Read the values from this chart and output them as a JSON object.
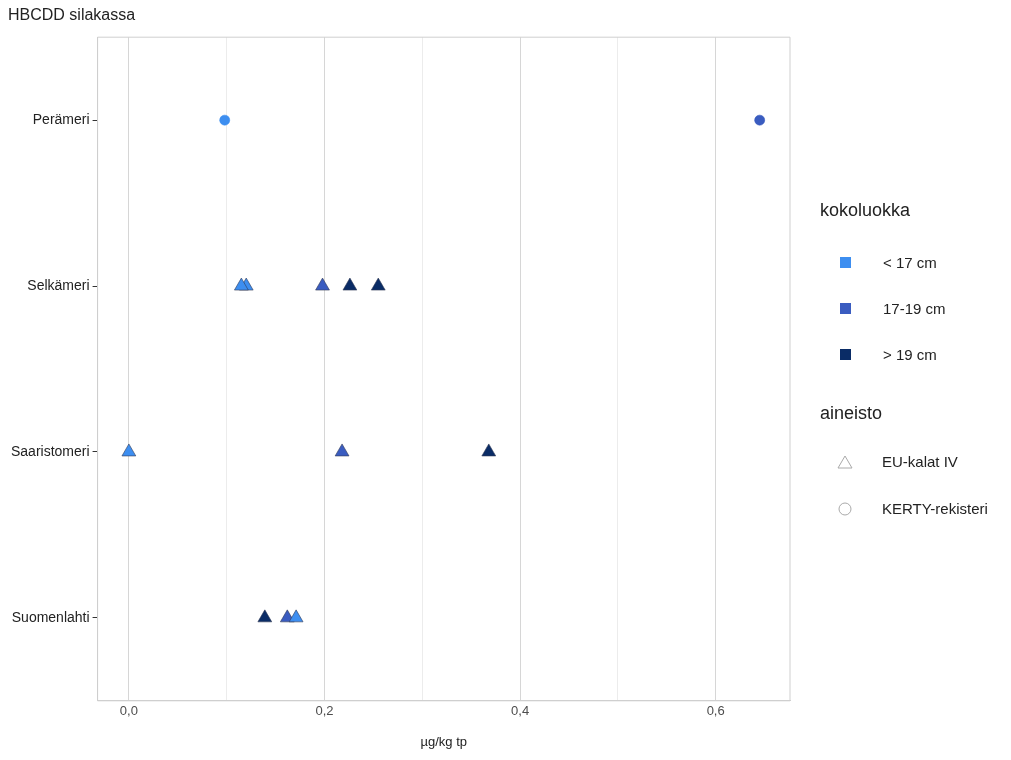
{
  "chart_data": {
    "type": "scatter",
    "title": "HBCDD silakassa",
    "xlabel": "µg/kg tp",
    "orientation": "horizontal",
    "categories": [
      "Perämeri",
      "Selkämeri",
      "Saaristomeri",
      "Suomenlahti"
    ],
    "xlim": [
      -0.032,
      0.676
    ],
    "xticks": [
      {
        "value": 0,
        "label": "0,0"
      },
      {
        "value": 0.1,
        "label": null
      },
      {
        "value": 0.2,
        "label": "0,2"
      },
      {
        "value": 0.3,
        "label": null
      },
      {
        "value": 0.4,
        "label": "0,4"
      },
      {
        "value": 0.5,
        "label": null
      },
      {
        "value": 0.6,
        "label": "0,6"
      }
    ],
    "grid": "x",
    "legend": "right",
    "legend_title": [
      "kokoluokka",
      "aineisto"
    ],
    "annotations": [
      "EU-kalat IV",
      "KERTY-rekisteri"
    ],
    "series": [
      {
        "name": "< 17 cm",
        "color": "#3d8ef0",
        "marker": "triangle",
        "values": [
          null,
          0.115,
          0.0,
          0.171
        ]
      },
      {
        "color": "#3d8ef0",
        "marker": "triangle",
        "values": [
          null,
          0.12,
          null,
          null
        ]
      },
      {
        "color": "#3d8ef0",
        "marker": "circle",
        "values": [
          0.098,
          null,
          null,
          null
        ]
      },
      {
        "name": "17-19 cm",
        "color": "#3a5cc0",
        "marker": "triangle",
        "values": [
          null,
          0.198,
          0.218,
          0.162
        ]
      },
      {
        "color": "#3a5cc0",
        "marker": "circle",
        "values": [
          0.645,
          null,
          null,
          null
        ]
      },
      {
        "name": "> 19 cm",
        "color": "#0a2c66",
        "marker": "triangle",
        "values": [
          null,
          0.226,
          0.368,
          0.139
        ]
      },
      {
        "color": "#0a2c66",
        "marker": "triangle",
        "values": [
          null,
          0.255,
          null,
          null
        ]
      }
    ]
  }
}
